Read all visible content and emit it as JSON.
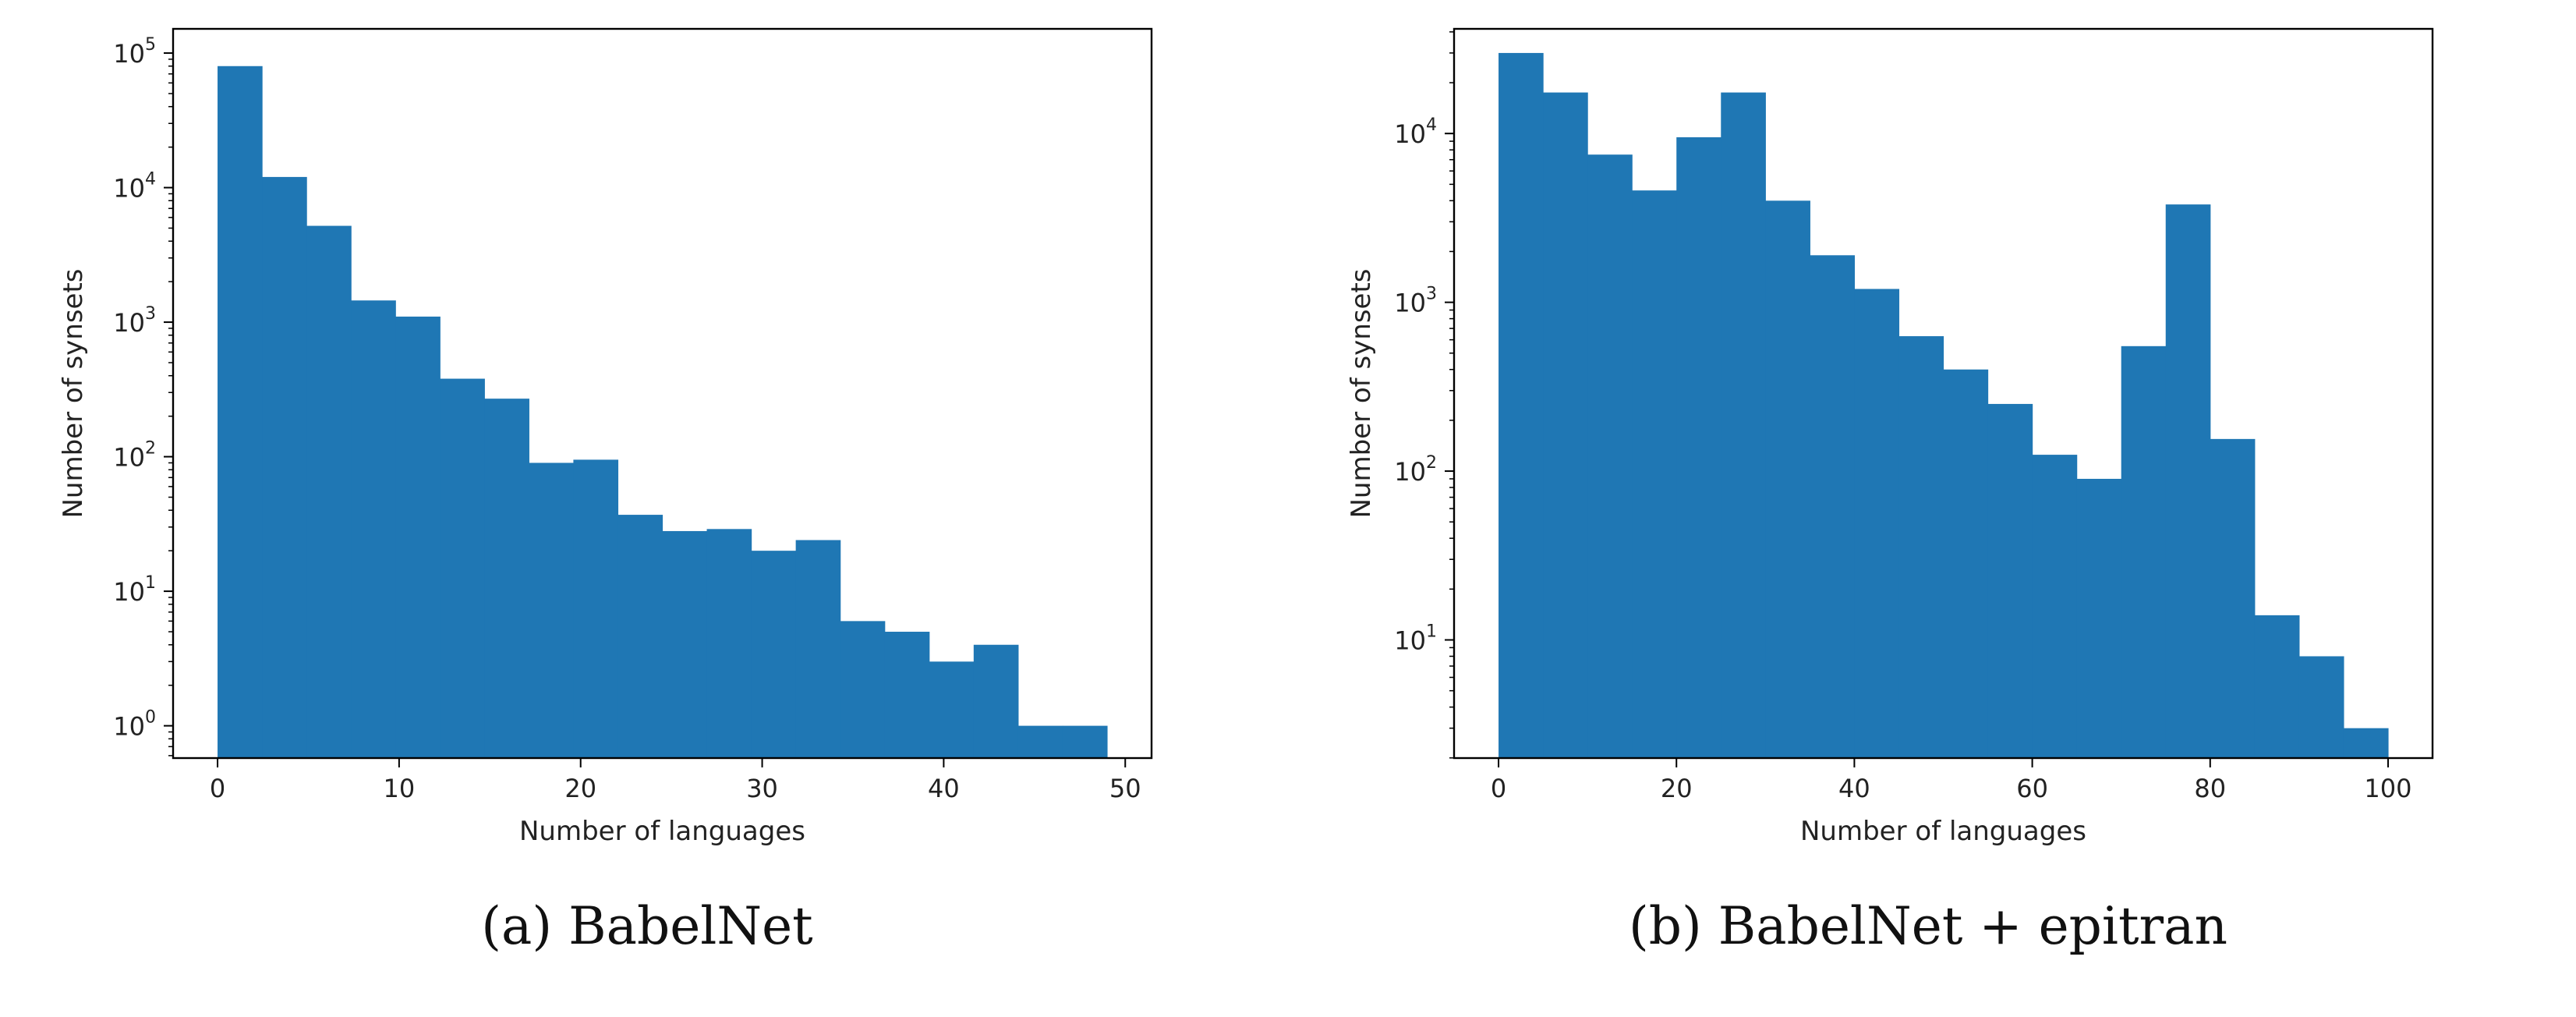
{
  "chart_data": [
    {
      "type": "bar",
      "caption": "(a) BabelNet",
      "xlabel": "Number of languages",
      "ylabel": "Number of synsets",
      "xlim": [
        -2.45,
        51.45
      ],
      "ylim_log": [
        -0.24,
        5.18
      ],
      "yscale": "log",
      "bin_edges": [
        0,
        2.45,
        4.9,
        7.35,
        9.8,
        12.25,
        14.7,
        17.15,
        19.6,
        22.05,
        24.5,
        26.95,
        29.4,
        31.85,
        34.3,
        36.75,
        39.2,
        41.65,
        44.1,
        46.55,
        49
      ],
      "values": [
        80000,
        12000,
        5200,
        1450,
        1100,
        380,
        270,
        90,
        95,
        37,
        28,
        29,
        20,
        24,
        6,
        5,
        3,
        4,
        1,
        1
      ],
      "xticks": [
        0,
        10,
        20,
        30,
        40,
        50
      ],
      "yticks": [
        0,
        1,
        2,
        3,
        4,
        5
      ],
      "color": "#1f77b4"
    },
    {
      "type": "bar",
      "caption": "(b) BabelNet + epitran",
      "xlabel": "Number of languages",
      "ylabel": "Number of synsets",
      "xlim": [
        -5,
        105
      ],
      "ylim_log": [
        0.3,
        4.62
      ],
      "yscale": "log",
      "bin_edges": [
        0,
        5,
        10,
        15,
        20,
        25,
        30,
        35,
        40,
        45,
        50,
        55,
        60,
        65,
        70,
        75,
        80,
        85,
        90,
        95,
        100
      ],
      "values": [
        30000,
        17500,
        7500,
        4600,
        9500,
        17500,
        4000,
        1900,
        1200,
        630,
        400,
        250,
        125,
        90,
        550,
        3800,
        155,
        14,
        8,
        3
      ],
      "xticks": [
        0,
        20,
        40,
        60,
        80,
        100
      ],
      "yticks": [
        1,
        2,
        3,
        4
      ],
      "color": "#1f77b4"
    }
  ]
}
